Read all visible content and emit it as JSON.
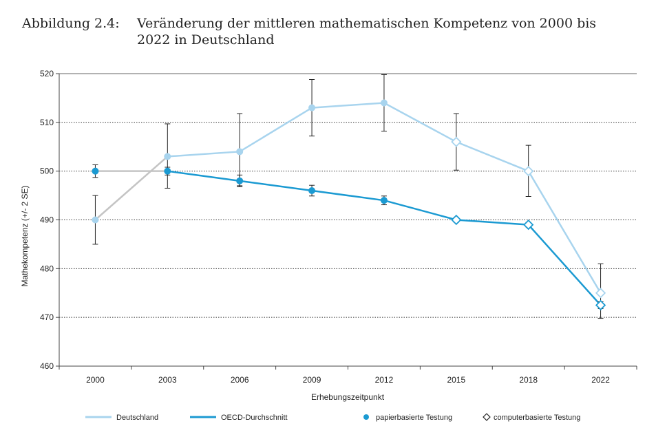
{
  "figure": {
    "number": "Abbildung 2.4:",
    "title": "Veränderung der mittleren mathematischen Kompetenz von 2000 bis 2022 in Deutschland"
  },
  "colors": {
    "deutschland": "#a8d4ee",
    "oecd": "#1b9ad2",
    "bridge": "#c4c4c4",
    "errorbar": "#222222"
  },
  "chart_data": {
    "type": "line",
    "categories": [
      "2000",
      "2003",
      "2006",
      "2009",
      "2012",
      "2015",
      "2018",
      "2022"
    ],
    "xlabel": "Erhebungszeitpunkt",
    "ylabel": "Mathekompetenz (+/- 2 SE)",
    "ylim": [
      460,
      520
    ],
    "yticks": [
      460,
      470,
      480,
      490,
      500,
      510,
      520
    ],
    "grid": "horizontal dotted",
    "series": [
      {
        "name": "Deutschland",
        "values": [
          490,
          503,
          504,
          513,
          514,
          506,
          500,
          475
        ],
        "err_low": [
          485,
          496.5,
          497,
          507.2,
          508.2,
          500.2,
          494.8,
          469.8
        ],
        "err_high": [
          495,
          509.7,
          511.8,
          518.8,
          519.8,
          511.8,
          505.3,
          481
        ],
        "testing": [
          "paper",
          "paper",
          "paper",
          "paper",
          "paper",
          "computer",
          "computer",
          "computer"
        ]
      },
      {
        "name": "OECD-Durchschnitt",
        "values": [
          500,
          500,
          498,
          496,
          494,
          490,
          489,
          472.5
        ],
        "err_low": [
          498.7,
          499.2,
          496.8,
          494.9,
          493.1,
          489.5,
          488.5,
          471.8
        ],
        "err_high": [
          501.3,
          500.8,
          499.2,
          497.1,
          494.9,
          490.5,
          489.5,
          473.2
        ],
        "testing": [
          "paper",
          "paper",
          "paper",
          "paper",
          "paper",
          "computer",
          "computer",
          "computer"
        ]
      }
    ],
    "legend": {
      "position": "bottom",
      "items": [
        "Deutschland",
        "OECD-Durchschnitt",
        "papierbasierte Testung",
        "computerbasierte Testung"
      ]
    }
  }
}
